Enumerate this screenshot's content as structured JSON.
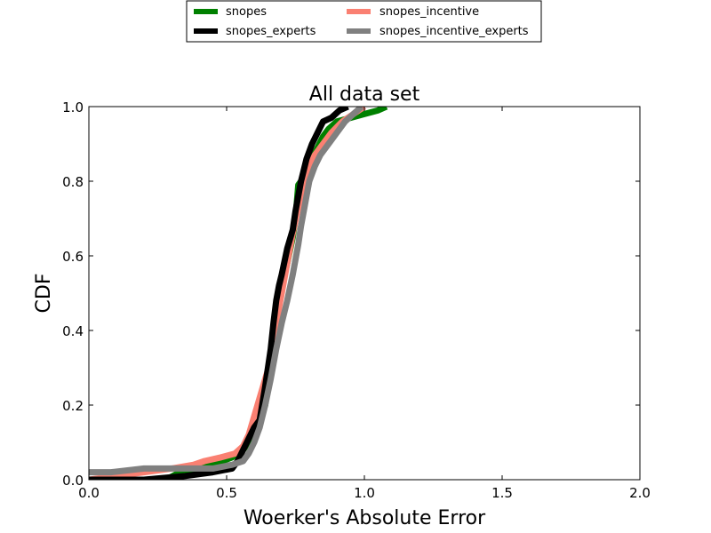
{
  "chart_data": {
    "type": "line",
    "title": "All data set",
    "xlabel": "Woerker's Absolute Error",
    "ylabel": "CDF",
    "xlim": [
      0.0,
      2.0
    ],
    "ylim": [
      0.0,
      1.0
    ],
    "xticks": [
      "0.0",
      "0.5",
      "1.0",
      "1.5",
      "2.0"
    ],
    "yticks": [
      "0.0",
      "0.2",
      "0.4",
      "0.6",
      "0.8",
      "1.0"
    ],
    "grid": false,
    "legend": {
      "placement": "top-center, above plot, 2 columns"
    },
    "series": [
      {
        "name": "snopes",
        "color": "#008000",
        "x": [
          0.0,
          0.28,
          0.33,
          0.45,
          0.52,
          0.56,
          0.58,
          0.6,
          0.62,
          0.64,
          0.65,
          0.66,
          0.67,
          0.68,
          0.7,
          0.72,
          0.74,
          0.75,
          0.76,
          0.77,
          0.79,
          0.81,
          0.83,
          0.85,
          0.87,
          0.9,
          0.95,
          1.0,
          1.05,
          1.08
        ],
        "y": [
          0.0,
          0.0,
          0.02,
          0.04,
          0.06,
          0.08,
          0.1,
          0.13,
          0.16,
          0.2,
          0.26,
          0.33,
          0.37,
          0.45,
          0.52,
          0.58,
          0.65,
          0.7,
          0.79,
          0.8,
          0.82,
          0.86,
          0.89,
          0.92,
          0.94,
          0.96,
          0.97,
          0.98,
          0.99,
          1.0
        ]
      },
      {
        "name": "snopes_experts",
        "color": "#000000",
        "x": [
          0.0,
          0.2,
          0.35,
          0.45,
          0.52,
          0.54,
          0.56,
          0.58,
          0.6,
          0.62,
          0.64,
          0.66,
          0.67,
          0.68,
          0.69,
          0.7,
          0.72,
          0.74,
          0.75,
          0.77,
          0.79,
          0.81,
          0.83,
          0.85,
          0.88,
          0.91,
          0.94
        ],
        "y": [
          0.0,
          0.0,
          0.01,
          0.02,
          0.03,
          0.05,
          0.08,
          0.11,
          0.14,
          0.16,
          0.25,
          0.35,
          0.42,
          0.48,
          0.52,
          0.55,
          0.62,
          0.67,
          0.72,
          0.8,
          0.86,
          0.9,
          0.93,
          0.96,
          0.97,
          0.99,
          1.0
        ]
      },
      {
        "name": "snopes_incentive",
        "color": "#fa8072",
        "x": [
          0.0,
          0.1,
          0.2,
          0.3,
          0.38,
          0.42,
          0.48,
          0.53,
          0.56,
          0.58,
          0.6,
          0.62,
          0.64,
          0.66,
          0.67,
          0.68,
          0.7,
          0.72,
          0.74,
          0.76,
          0.78,
          0.8,
          0.82,
          0.85,
          0.88,
          0.92,
          0.96,
          1.0
        ],
        "y": [
          0.0,
          0.01,
          0.02,
          0.03,
          0.04,
          0.05,
          0.06,
          0.07,
          0.09,
          0.12,
          0.17,
          0.22,
          0.27,
          0.32,
          0.38,
          0.42,
          0.5,
          0.58,
          0.66,
          0.73,
          0.79,
          0.84,
          0.87,
          0.9,
          0.93,
          0.96,
          0.98,
          1.0
        ]
      },
      {
        "name": "snopes_incentive_experts",
        "color": "#808080",
        "x": [
          0.0,
          0.08,
          0.2,
          0.3,
          0.45,
          0.52,
          0.56,
          0.58,
          0.6,
          0.62,
          0.64,
          0.66,
          0.68,
          0.7,
          0.72,
          0.74,
          0.76,
          0.77,
          0.78,
          0.79,
          0.8,
          0.82,
          0.84,
          0.87,
          0.9,
          0.93,
          0.96,
          0.99
        ],
        "y": [
          0.02,
          0.02,
          0.03,
          0.03,
          0.03,
          0.04,
          0.05,
          0.07,
          0.1,
          0.14,
          0.2,
          0.27,
          0.35,
          0.42,
          0.48,
          0.55,
          0.63,
          0.68,
          0.72,
          0.76,
          0.8,
          0.84,
          0.87,
          0.9,
          0.93,
          0.96,
          0.98,
          1.0
        ]
      }
    ]
  }
}
